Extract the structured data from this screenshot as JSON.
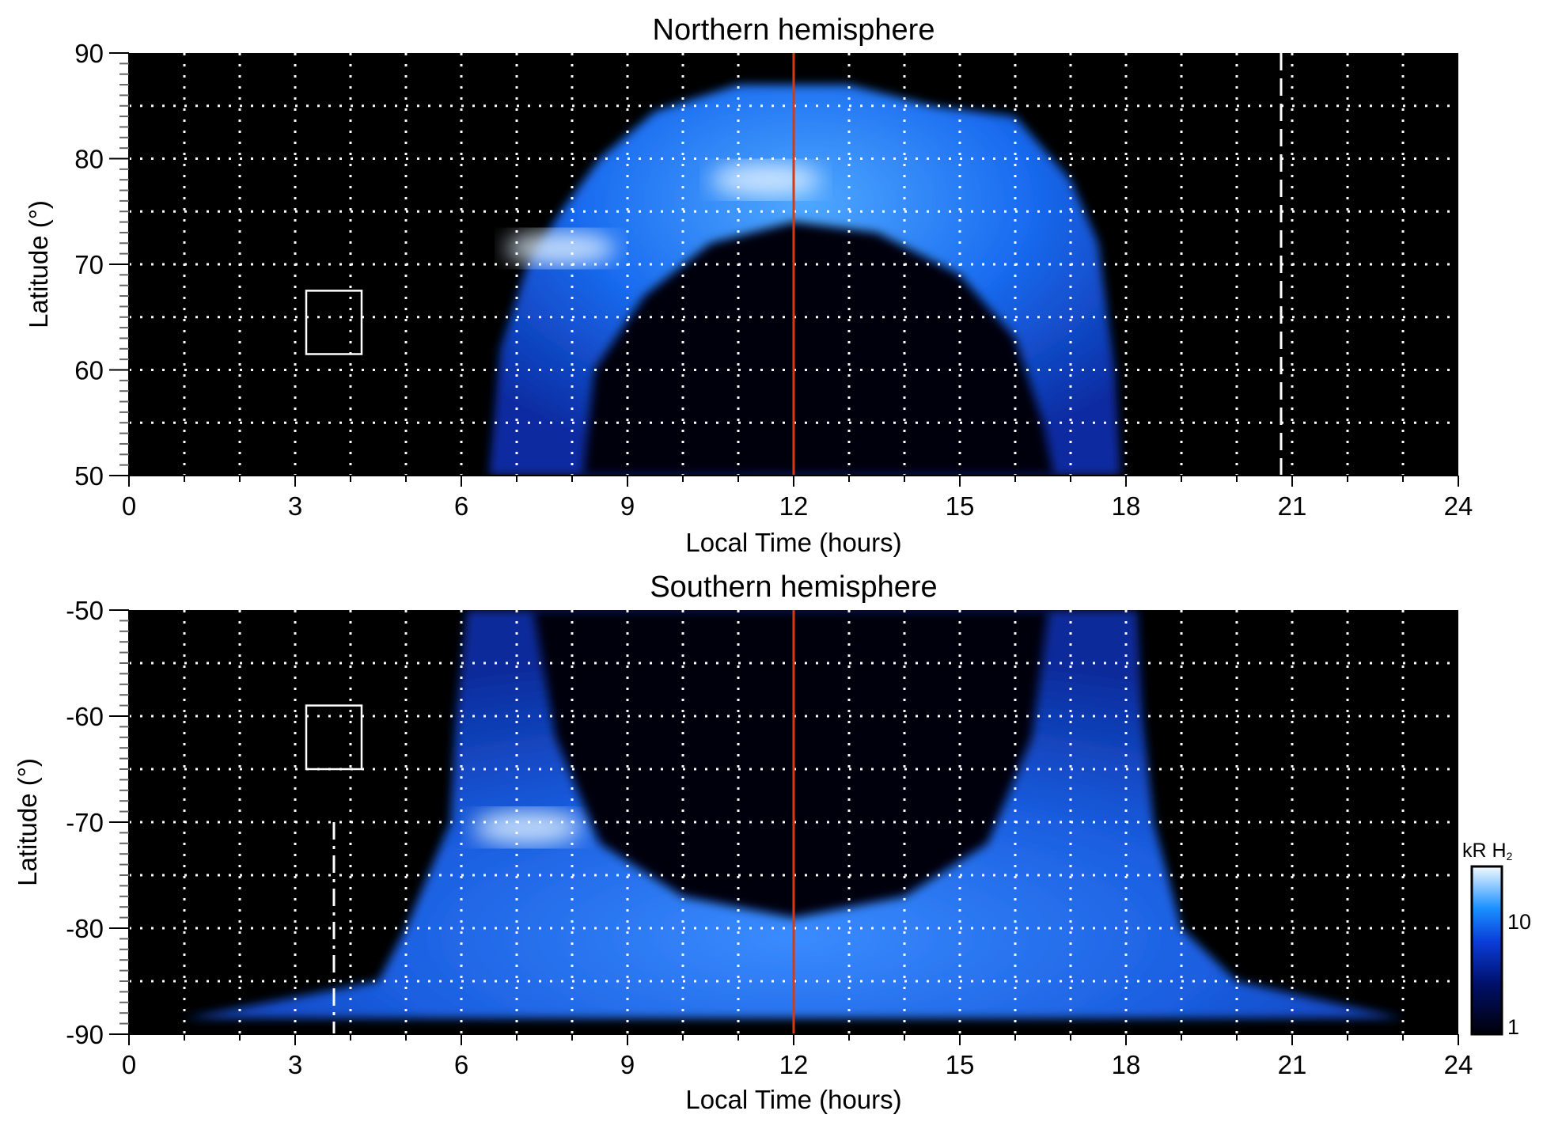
{
  "chart_data": [
    {
      "type": "heatmap",
      "title": "Northern hemisphere",
      "xlabel": "Local Time (hours)",
      "ylabel": "Latitude (°)",
      "xlim": [
        0,
        24
      ],
      "ylim": [
        50,
        90
      ],
      "xticks": [
        "0",
        "3",
        "6",
        "9",
        "12",
        "15",
        "18",
        "21",
        "24"
      ],
      "yticks": [
        "50",
        "60",
        "70",
        "80",
        "90"
      ],
      "grid": true,
      "oval_outer": [
        [
          6.5,
          50
        ],
        [
          6.7,
          62
        ],
        [
          7.2,
          70
        ],
        [
          7.8,
          75
        ],
        [
          8.5,
          80
        ],
        [
          9.5,
          84.5
        ],
        [
          11,
          87
        ],
        [
          13,
          87
        ],
        [
          14.5,
          85
        ],
        [
          16,
          84
        ],
        [
          17,
          78
        ],
        [
          17.5,
          72
        ],
        [
          17.8,
          60
        ],
        [
          17.9,
          50
        ]
      ],
      "oval_inner": [
        [
          8.2,
          50
        ],
        [
          8.4,
          60
        ],
        [
          9.3,
          67
        ],
        [
          10.5,
          72
        ],
        [
          12,
          74
        ],
        [
          13.5,
          73
        ],
        [
          15,
          69
        ],
        [
          16,
          63
        ],
        [
          16.5,
          55
        ],
        [
          16.7,
          50
        ]
      ],
      "bright_spots": [
        [
          7.8,
          71.5
        ],
        [
          11.5,
          78
        ]
      ],
      "noon_line_lt": 12,
      "marker_line": {
        "lt": 20.8,
        "lat_range": [
          50,
          90
        ],
        "style": "dashed"
      },
      "box": {
        "lt": [
          3.2,
          4.2
        ],
        "lat": [
          61.5,
          67.5
        ]
      }
    },
    {
      "type": "heatmap",
      "title": "Southern hemisphere",
      "xlabel": "Local Time (hours)",
      "ylabel": "Latitude (°)",
      "xlim": [
        0,
        24
      ],
      "ylim": [
        -90,
        -50
      ],
      "xticks": [
        "0",
        "3",
        "6",
        "9",
        "12",
        "15",
        "18",
        "21",
        "24"
      ],
      "yticks": [
        "-50",
        "-60",
        "-70",
        "-80",
        "-90"
      ],
      "grid": true,
      "oval_outer": [
        [
          6.1,
          -50
        ],
        [
          5.9,
          -60
        ],
        [
          5.8,
          -70
        ],
        [
          5,
          -80
        ],
        [
          4.5,
          -85
        ],
        [
          1,
          -88.5
        ],
        [
          23,
          -88.5
        ],
        [
          20,
          -85
        ],
        [
          19,
          -80
        ],
        [
          18.5,
          -70
        ],
        [
          18.3,
          -60
        ],
        [
          18.2,
          -50
        ]
      ],
      "oval_inner": [
        [
          7.3,
          -50
        ],
        [
          7.7,
          -62
        ],
        [
          8.5,
          -72
        ],
        [
          10,
          -77
        ],
        [
          12,
          -79
        ],
        [
          14,
          -77
        ],
        [
          15.5,
          -72
        ],
        [
          16.3,
          -62
        ],
        [
          16.6,
          -50
        ]
      ],
      "bright_spots": [
        [
          7.2,
          -70.5
        ]
      ],
      "noon_line_lt": 12,
      "marker_line": {
        "lt": 3.7,
        "lat_range": [
          -70,
          -90
        ],
        "style": "dash-dot"
      },
      "box": {
        "lt": [
          3.2,
          4.2
        ],
        "lat": [
          -59,
          -65
        ]
      }
    }
  ],
  "colorbar": {
    "label": "kR H",
    "label_sub": "2",
    "ticks": [
      "1",
      "10"
    ],
    "range": [
      1,
      30
    ],
    "scale": "log"
  },
  "colors": {
    "low": "#000010",
    "mid": "#0a3dd8",
    "high": "#e8f4ff",
    "noon_line": "#d83a10"
  }
}
